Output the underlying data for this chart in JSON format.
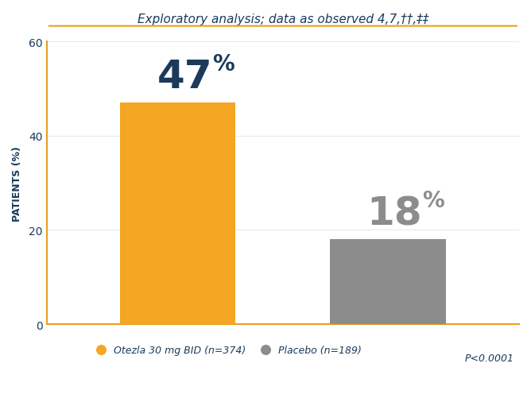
{
  "categories": [
    "Otezla 30 mg BID (n=374)",
    "Placebo (n=189)"
  ],
  "values": [
    47,
    18
  ],
  "bar_colors": [
    "#F5A623",
    "#8C8C8C"
  ],
  "bar_positions": [
    0.3,
    0.7
  ],
  "bar_width": 0.22,
  "title_text": "Exploratory analysis; data as observed ",
  "title_superscript": "4,7,††,‡‡",
  "ylabel": "PATIENTS (%)",
  "ylim": [
    0,
    60
  ],
  "yticks": [
    0,
    20,
    40,
    60
  ],
  "pvalue_text": "P<0.0001",
  "legend_labels": [
    "Otezla 30 mg BID (n=374)",
    "Placebo (n=189)"
  ],
  "legend_colors": [
    "#F5A623",
    "#8C8C8C"
  ],
  "title_color": "#1B3A5C",
  "axis_color": "#E8A020",
  "bar_num_color_1": "#1B3A5C",
  "bar_num_color_2": "#8C8C8C",
  "ylabel_color": "#1B3A5C",
  "pvalue_color": "#1B3A5C",
  "legend_text_color": "#1B3A5C",
  "background_color": "#FFFFFF",
  "top_line_color": "#E8A020",
  "title_fontsize": 11,
  "ylabel_fontsize": 9,
  "bar_label_fontsize_large": 36,
  "bar_label_pct_fontsize": 20,
  "legend_fontsize": 9,
  "pvalue_fontsize": 9,
  "tick_fontsize": 10
}
